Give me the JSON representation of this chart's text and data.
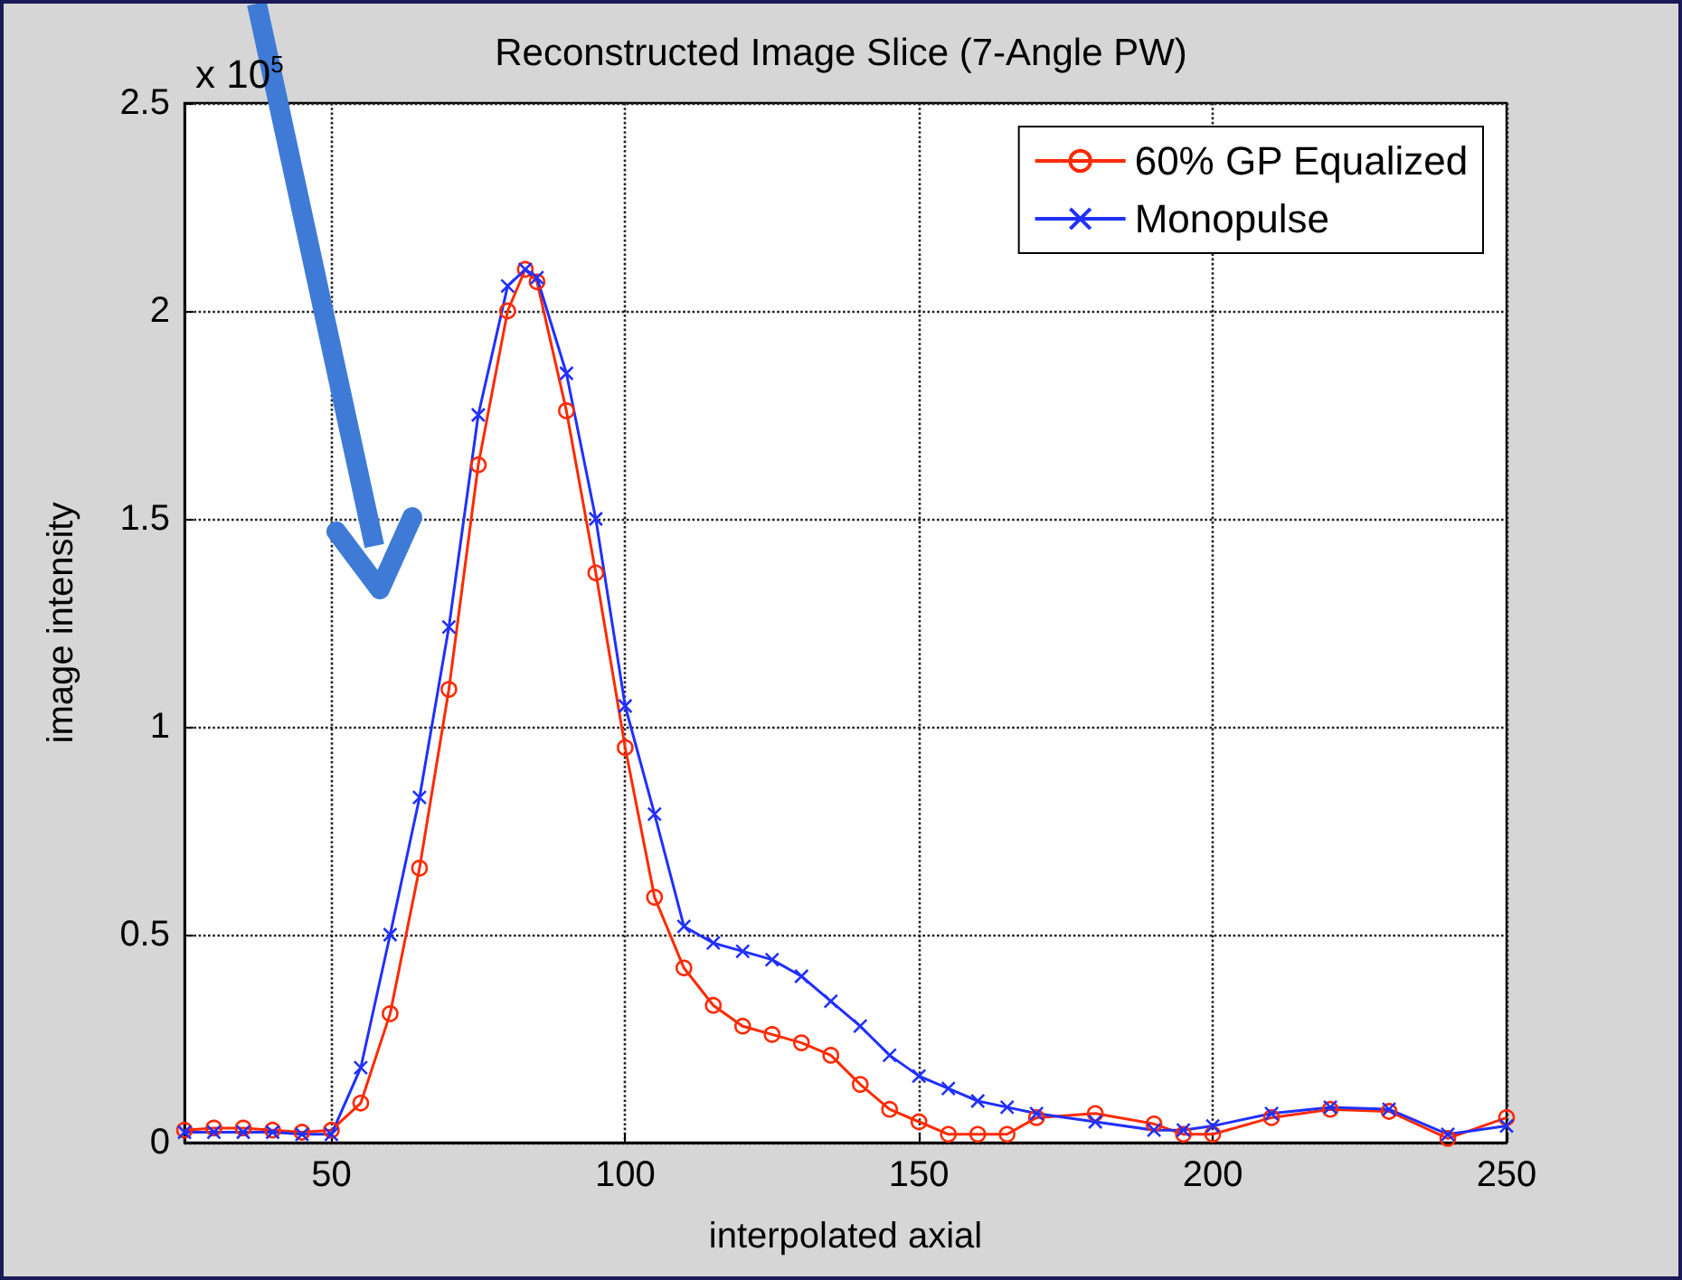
{
  "chart_data": {
    "type": "line",
    "title": "Reconstructed Image Slice (7-Angle PW)",
    "xlabel": "interpolated axial",
    "ylabel": "image intensity",
    "annotations": [
      "x 10$^{5}$"
    ],
    "x": [
      25,
      30,
      35,
      40,
      45,
      50,
      55,
      60,
      65,
      70,
      75,
      80,
      83,
      85,
      90,
      95,
      100,
      105,
      110,
      115,
      120,
      125,
      130,
      135,
      140,
      145,
      150,
      155,
      160,
      165,
      170,
      180,
      190,
      195,
      200,
      210,
      220,
      230,
      240,
      250
    ],
    "series": [
      {
        "name": "60% GP Equalized",
        "color": "#ff2a00",
        "marker": "circle",
        "values": [
          0.03,
          0.035,
          0.035,
          0.03,
          0.025,
          0.03,
          0.095,
          0.31,
          0.66,
          1.09,
          1.63,
          2.0,
          2.1,
          2.07,
          1.76,
          1.37,
          0.95,
          0.59,
          0.42,
          0.33,
          0.28,
          0.26,
          0.24,
          0.21,
          0.14,
          0.08,
          0.05,
          0.02,
          0.02,
          0.02,
          0.06,
          0.07,
          0.045,
          0.02,
          0.02,
          0.06,
          0.08,
          0.075,
          0.01,
          0.06
        ]
      },
      {
        "name": "Monopulse",
        "color": "#2030ff",
        "marker": "cross",
        "values": [
          0.025,
          0.025,
          0.025,
          0.025,
          0.02,
          0.02,
          0.18,
          0.5,
          0.83,
          1.24,
          1.75,
          2.06,
          2.1,
          2.08,
          1.85,
          1.5,
          1.05,
          0.79,
          0.52,
          0.48,
          0.46,
          0.44,
          0.4,
          0.34,
          0.28,
          0.21,
          0.16,
          0.13,
          0.1,
          0.085,
          0.07,
          0.05,
          0.03,
          0.03,
          0.04,
          0.07,
          0.085,
          0.08,
          0.02,
          0.04
        ]
      }
    ],
    "xlim": [
      25,
      250
    ],
    "xticks": [
      50,
      100,
      150,
      200,
      250
    ],
    "ylim": [
      0,
      2.5
    ],
    "yticks": [
      0,
      0.5,
      1,
      1.5,
      2,
      2.5
    ],
    "grid": true,
    "legend": "top right",
    "line_style": "solid"
  }
}
